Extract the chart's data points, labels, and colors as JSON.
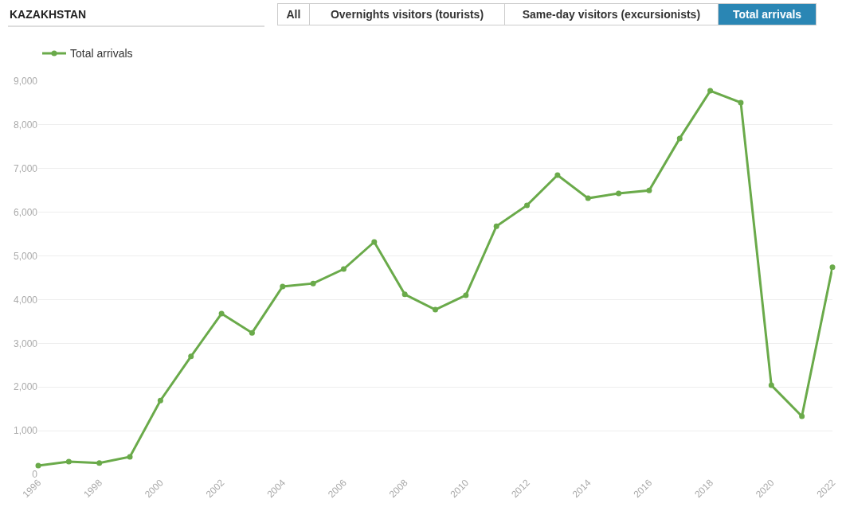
{
  "chart_data": {
    "type": "line",
    "x": [
      1996,
      1997,
      1998,
      1999,
      2000,
      2001,
      2002,
      2003,
      2004,
      2005,
      2006,
      2007,
      2008,
      2009,
      2010,
      2011,
      2012,
      2013,
      2014,
      2015,
      2016,
      2017,
      2018,
      2019,
      2020,
      2021,
      2022
    ],
    "series": [
      {
        "name": "Total arrivals",
        "color": "#6aaa4a",
        "values": [
          200,
          290,
          260,
          400,
          1690,
          2700,
          3680,
          3240,
          4300,
          4370,
          4700,
          5320,
          4120,
          3770,
          4100,
          5680,
          6160,
          6850,
          6320,
          6430,
          6500,
          7690,
          8780,
          8510,
          2040,
          1330,
          4740
        ]
      }
    ],
    "xlim": [
      1996,
      2022
    ],
    "xticks": [
      1996,
      1998,
      2000,
      2002,
      2004,
      2006,
      2008,
      2010,
      2012,
      2014,
      2016,
      2018,
      2020,
      2022
    ],
    "ylim": [
      0,
      9000
    ],
    "yticks": [
      {
        "value": 0,
        "label": "0"
      },
      {
        "value": 1000,
        "label": "1,000"
      },
      {
        "value": 2000,
        "label": "2,000"
      },
      {
        "value": 3000,
        "label": "3,000"
      },
      {
        "value": 4000,
        "label": "4,000"
      },
      {
        "value": 5000,
        "label": "5,000"
      },
      {
        "value": 6000,
        "label": "6,000"
      },
      {
        "value": 7000,
        "label": "7,000"
      },
      {
        "value": 8000,
        "label": "8,000"
      },
      {
        "value": 9000,
        "label": "9,000"
      }
    ],
    "grid": "y",
    "legend": "top left",
    "marker": "circle",
    "line_style": "solid",
    "annotations": [
      "KAZAKHSTAN",
      "All",
      "Overnights visitors (tourists)",
      "Same-day visitors (excursionists)",
      "Total arrivals"
    ]
  }
}
